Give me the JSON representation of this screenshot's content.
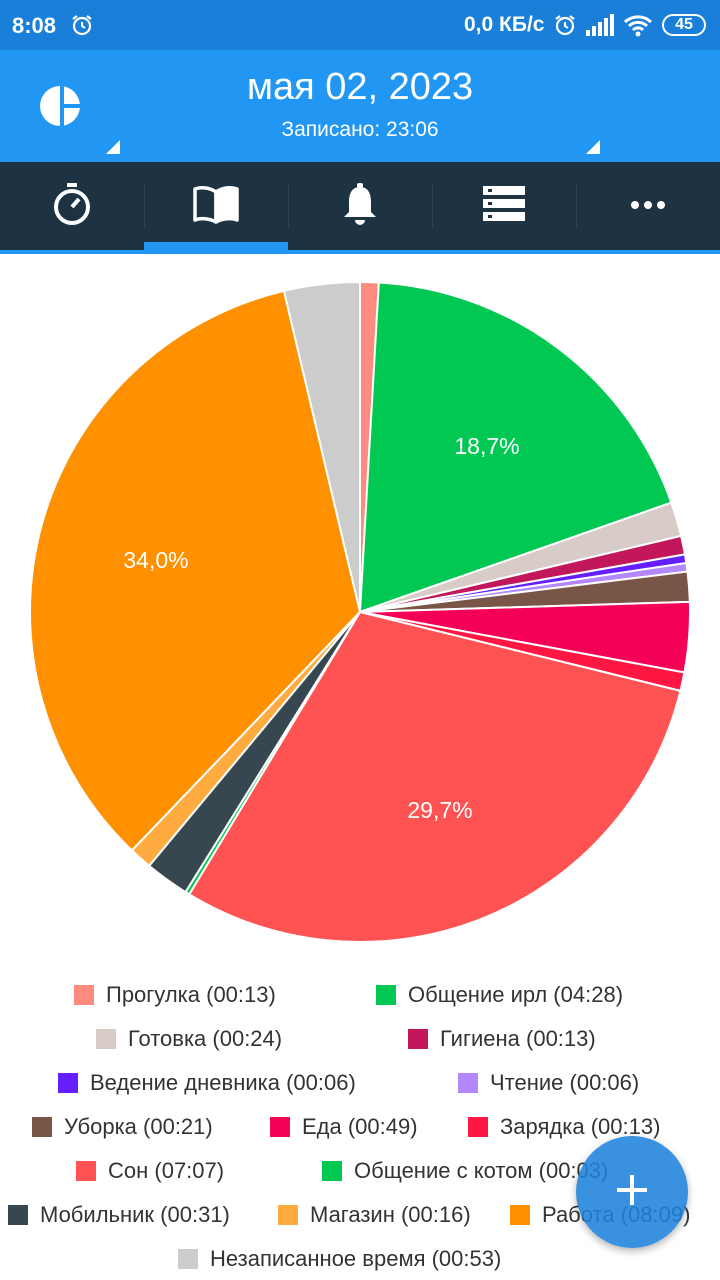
{
  "status_bar": {
    "time": "8:08",
    "network_speed": "0,0 КБ/с",
    "battery": "45",
    "icons": [
      "alarm-icon",
      "alarm-icon",
      "signal-icon",
      "wifi-icon",
      "battery-icon"
    ]
  },
  "header": {
    "date": "мая 02, 2023",
    "recorded": "Записано: 23:06",
    "logo_icon": "pie-chart-logo-icon"
  },
  "tabs": [
    {
      "icon": "stopwatch-icon"
    },
    {
      "icon": "book-icon",
      "selected": true
    },
    {
      "icon": "bell-icon"
    },
    {
      "icon": "list-icon"
    },
    {
      "icon": "more-icon"
    }
  ],
  "colors": {
    "accent": "#2196f3",
    "status_bar": "#1a7fd8",
    "tab_bar": "#1d3341"
  },
  "chart_data": {
    "type": "pie",
    "slice_labels": [
      "18,7%",
      "29,7%",
      "34,0%"
    ],
    "series": [
      {
        "name": "Прогулка (00:13)",
        "minutes": 13,
        "color": "#ff8a80"
      },
      {
        "name": "Общение ирл (04:28)",
        "minutes": 268,
        "color": "#00c853"
      },
      {
        "name": "Готовка (00:24)",
        "minutes": 24,
        "color": "#d7ccc8"
      },
      {
        "name": "Гигиена  (00:13)",
        "minutes": 13,
        "color": "#c2185b"
      },
      {
        "name": "Ведение дневника  (00:06)",
        "minutes": 6,
        "color": "#651fff"
      },
      {
        "name": "Чтение (00:06)",
        "minutes": 6,
        "color": "#b388ff"
      },
      {
        "name": "Уборка (00:21)",
        "minutes": 21,
        "color": "#795548"
      },
      {
        "name": "Еда (00:49)",
        "minutes": 49,
        "color": "#f50057"
      },
      {
        "name": "Зарядка  (00:13)",
        "minutes": 13,
        "color": "#ff1744"
      },
      {
        "name": "Сон (07:07)",
        "minutes": 427,
        "color": "#ff5252"
      },
      {
        "name": "Общение с котом (00:03)",
        "minutes": 3,
        "color": "#00c853"
      },
      {
        "name": "Мобильник  (00:31)",
        "minutes": 31,
        "color": "#37474f"
      },
      {
        "name": "Магазин (00:16)",
        "minutes": 16,
        "color": "#ffab40"
      },
      {
        "name": "Работа (08:09)",
        "minutes": 489,
        "color": "#ff9100"
      },
      {
        "name": "Незаписанное время (00:53)",
        "minutes": 53,
        "color": "#cccccc"
      }
    ]
  },
  "fab": {
    "icon": "plus-icon"
  }
}
